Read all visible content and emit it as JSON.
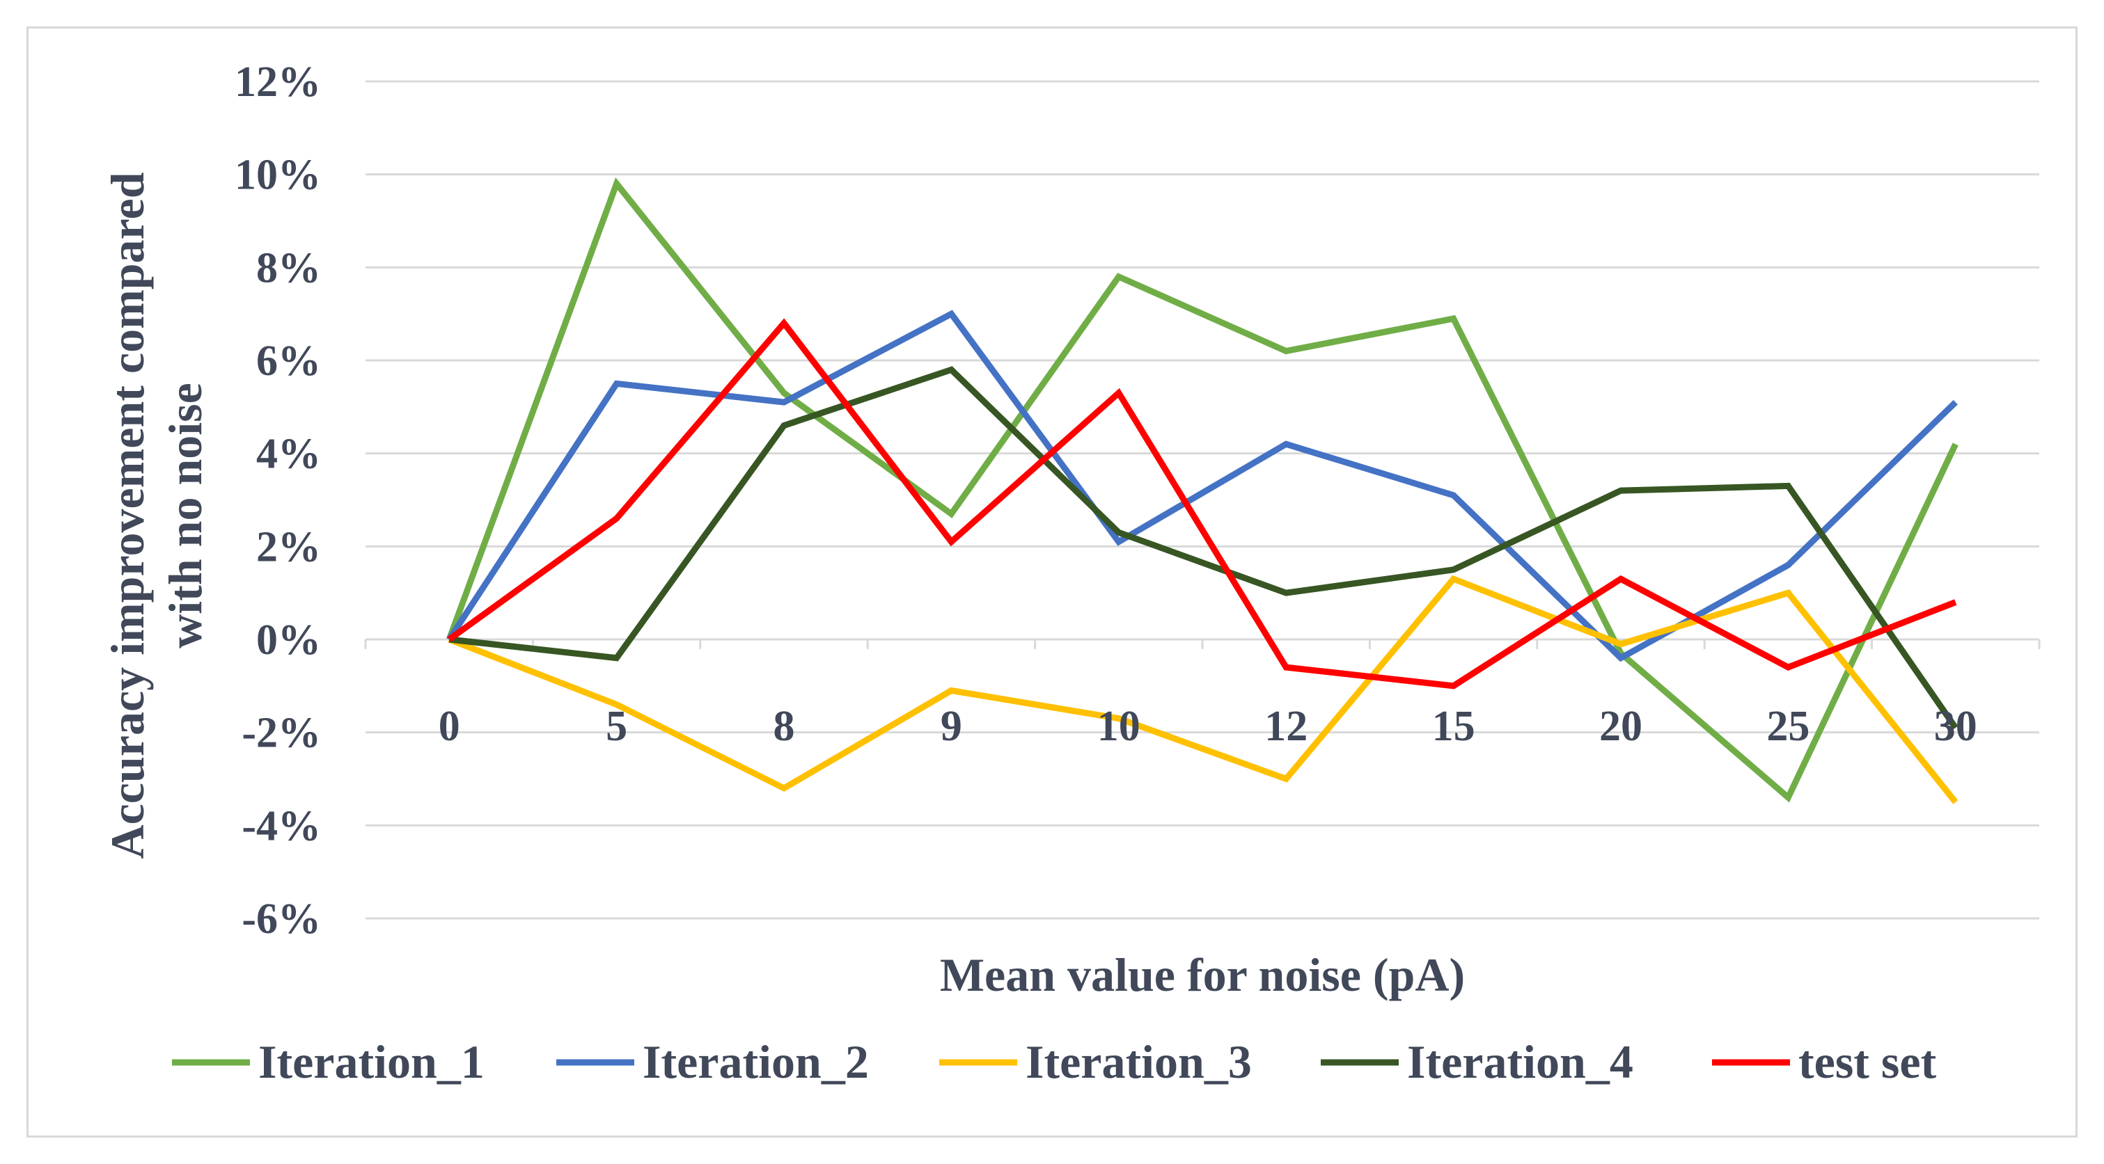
{
  "chart_data": {
    "type": "line",
    "title": "",
    "xlabel": "Mean value for noise (pA)",
    "ylabel_line1": "Accuracy improvement compared",
    "ylabel_line2": "with no noise",
    "categories": [
      "0",
      "5",
      "8",
      "9",
      "10",
      "12",
      "15",
      "20",
      "25",
      "30"
    ],
    "ylim": [
      -6,
      12
    ],
    "ytick_values": [
      12,
      10,
      8,
      6,
      4,
      2,
      0,
      -2,
      -4,
      -6
    ],
    "yticks": [
      "12%",
      "10%",
      "8%",
      "6%",
      "4%",
      "2%",
      "0%",
      "-2%",
      "-4%",
      "-6%"
    ],
    "grid": true,
    "legend_position": "bottom",
    "series": [
      {
        "name": "Iteration_1",
        "color": "#70ad47",
        "values": [
          0,
          9.8,
          5.3,
          2.7,
          7.8,
          6.2,
          6.9,
          -0.3,
          -3.4,
          4.2
        ]
      },
      {
        "name": "Iteration_2",
        "color": "#4472c4",
        "values": [
          0,
          5.5,
          5.1,
          7.0,
          2.1,
          4.2,
          3.1,
          -0.4,
          1.6,
          5.1
        ]
      },
      {
        "name": "Iteration_3",
        "color": "#ffc000",
        "values": [
          0,
          -1.4,
          -3.2,
          -1.1,
          -1.7,
          -3.0,
          1.3,
          -0.1,
          1.0,
          -3.5
        ]
      },
      {
        "name": "Iteration_4",
        "color": "#375623",
        "values": [
          0,
          -0.4,
          4.6,
          5.8,
          2.3,
          1.0,
          1.5,
          3.2,
          3.3,
          -1.9
        ]
      },
      {
        "name": "test set",
        "color": "#ff0000",
        "values": [
          0,
          2.6,
          6.8,
          2.1,
          5.3,
          -0.6,
          -1.0,
          1.3,
          -0.6,
          0.8
        ]
      }
    ]
  }
}
